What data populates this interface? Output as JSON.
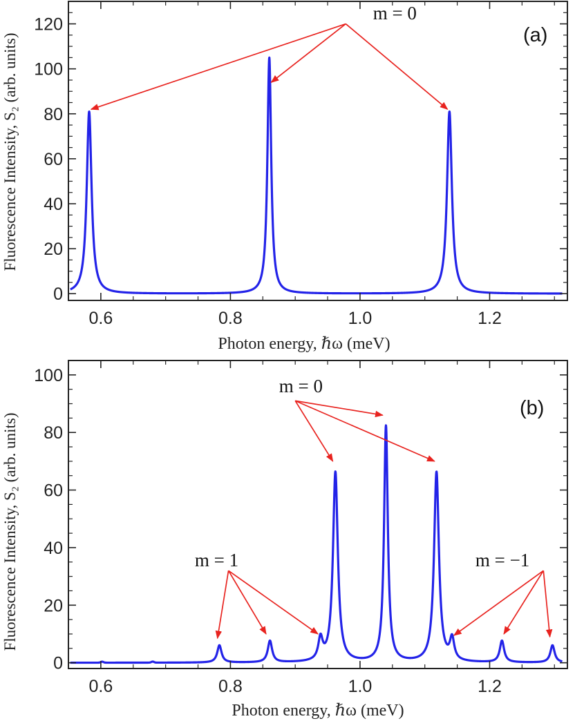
{
  "colors": {
    "curve": "#2323e8",
    "arrow": "#e8231f",
    "frame": "#222222"
  },
  "chart_data": [
    {
      "id": "a",
      "type": "line",
      "panel_label": "(a)",
      "xlabel": "Photon energy, ℏω (meV)",
      "ylabel": "Fluorescence Intensity, S₂ (arb. units)",
      "xlim": [
        0.55,
        1.32
      ],
      "ylim": [
        -3,
        130
      ],
      "xticks": [
        0.6,
        0.8,
        1.0,
        1.2
      ],
      "xtick_labels": [
        "0.6",
        "0.8",
        "1.0",
        "1.2"
      ],
      "yticks": [
        0,
        20,
        40,
        60,
        80,
        100,
        120
      ],
      "ytick_labels": [
        "0",
        "20",
        "40",
        "60",
        "80",
        "100",
        "120"
      ],
      "peaks": [
        {
          "x": 0.582,
          "height": 81,
          "width": 0.0045
        },
        {
          "x": 0.86,
          "height": 105,
          "width": 0.0035
        },
        {
          "x": 1.138,
          "height": 81,
          "width": 0.0045
        }
      ],
      "annotations": [
        {
          "text": "m = 0",
          "text_x": 1.02,
          "text_y": 122,
          "source_x": 0.978,
          "source_y": 120,
          "targets": [
            [
              0.585,
              82
            ],
            [
              0.863,
              94
            ],
            [
              1.135,
              82
            ]
          ]
        }
      ]
    },
    {
      "id": "b",
      "type": "line",
      "panel_label": "(b)",
      "xlabel": "Photon energy, ℏω (meV)",
      "ylabel": "Fluorescence Intensity, S₂ (arb. units)",
      "xlim": [
        0.55,
        1.32
      ],
      "ylim": [
        -2,
        105
      ],
      "xticks": [
        0.6,
        0.8,
        1.0,
        1.2
      ],
      "xtick_labels": [
        "0.6",
        "0.8",
        "1.0",
        "1.2"
      ],
      "yticks": [
        0,
        20,
        40,
        60,
        80,
        100
      ],
      "ytick_labels": [
        "0",
        "20",
        "40",
        "60",
        "80",
        "100"
      ],
      "peaks": [
        {
          "x": 0.783,
          "height": 6,
          "width": 0.004
        },
        {
          "x": 0.861,
          "height": 7.5,
          "width": 0.004
        },
        {
          "x": 0.939,
          "height": 7.5,
          "width": 0.004
        },
        {
          "x": 0.962,
          "height": 66,
          "width": 0.0045
        },
        {
          "x": 1.04,
          "height": 82,
          "width": 0.0035
        },
        {
          "x": 1.118,
          "height": 66,
          "width": 0.0045
        },
        {
          "x": 1.142,
          "height": 7.5,
          "width": 0.004
        },
        {
          "x": 1.219,
          "height": 7.5,
          "width": 0.004
        },
        {
          "x": 1.297,
          "height": 6,
          "width": 0.004
        }
      ],
      "annotations": [
        {
          "text": "m = 0",
          "text_x": 0.875,
          "text_y": 94,
          "source_x": 0.9,
          "source_y": 91,
          "targets": [
            [
              0.958,
              70
            ],
            [
              1.035,
              86
            ],
            [
              1.115,
              70
            ]
          ]
        },
        {
          "text": "m = 1",
          "text_x": 0.745,
          "text_y": 33.5,
          "source_x": 0.797,
          "source_y": 32,
          "targets": [
            [
              0.78,
              8.5
            ],
            [
              0.855,
              10
            ],
            [
              0.935,
              10
            ]
          ]
        },
        {
          "text": "m = −1",
          "text_x": 1.178,
          "text_y": 33.5,
          "source_x": 1.283,
          "source_y": 32,
          "targets": [
            [
              1.145,
              9.5
            ],
            [
              1.222,
              10
            ],
            [
              1.293,
              9
            ]
          ]
        }
      ]
    }
  ]
}
